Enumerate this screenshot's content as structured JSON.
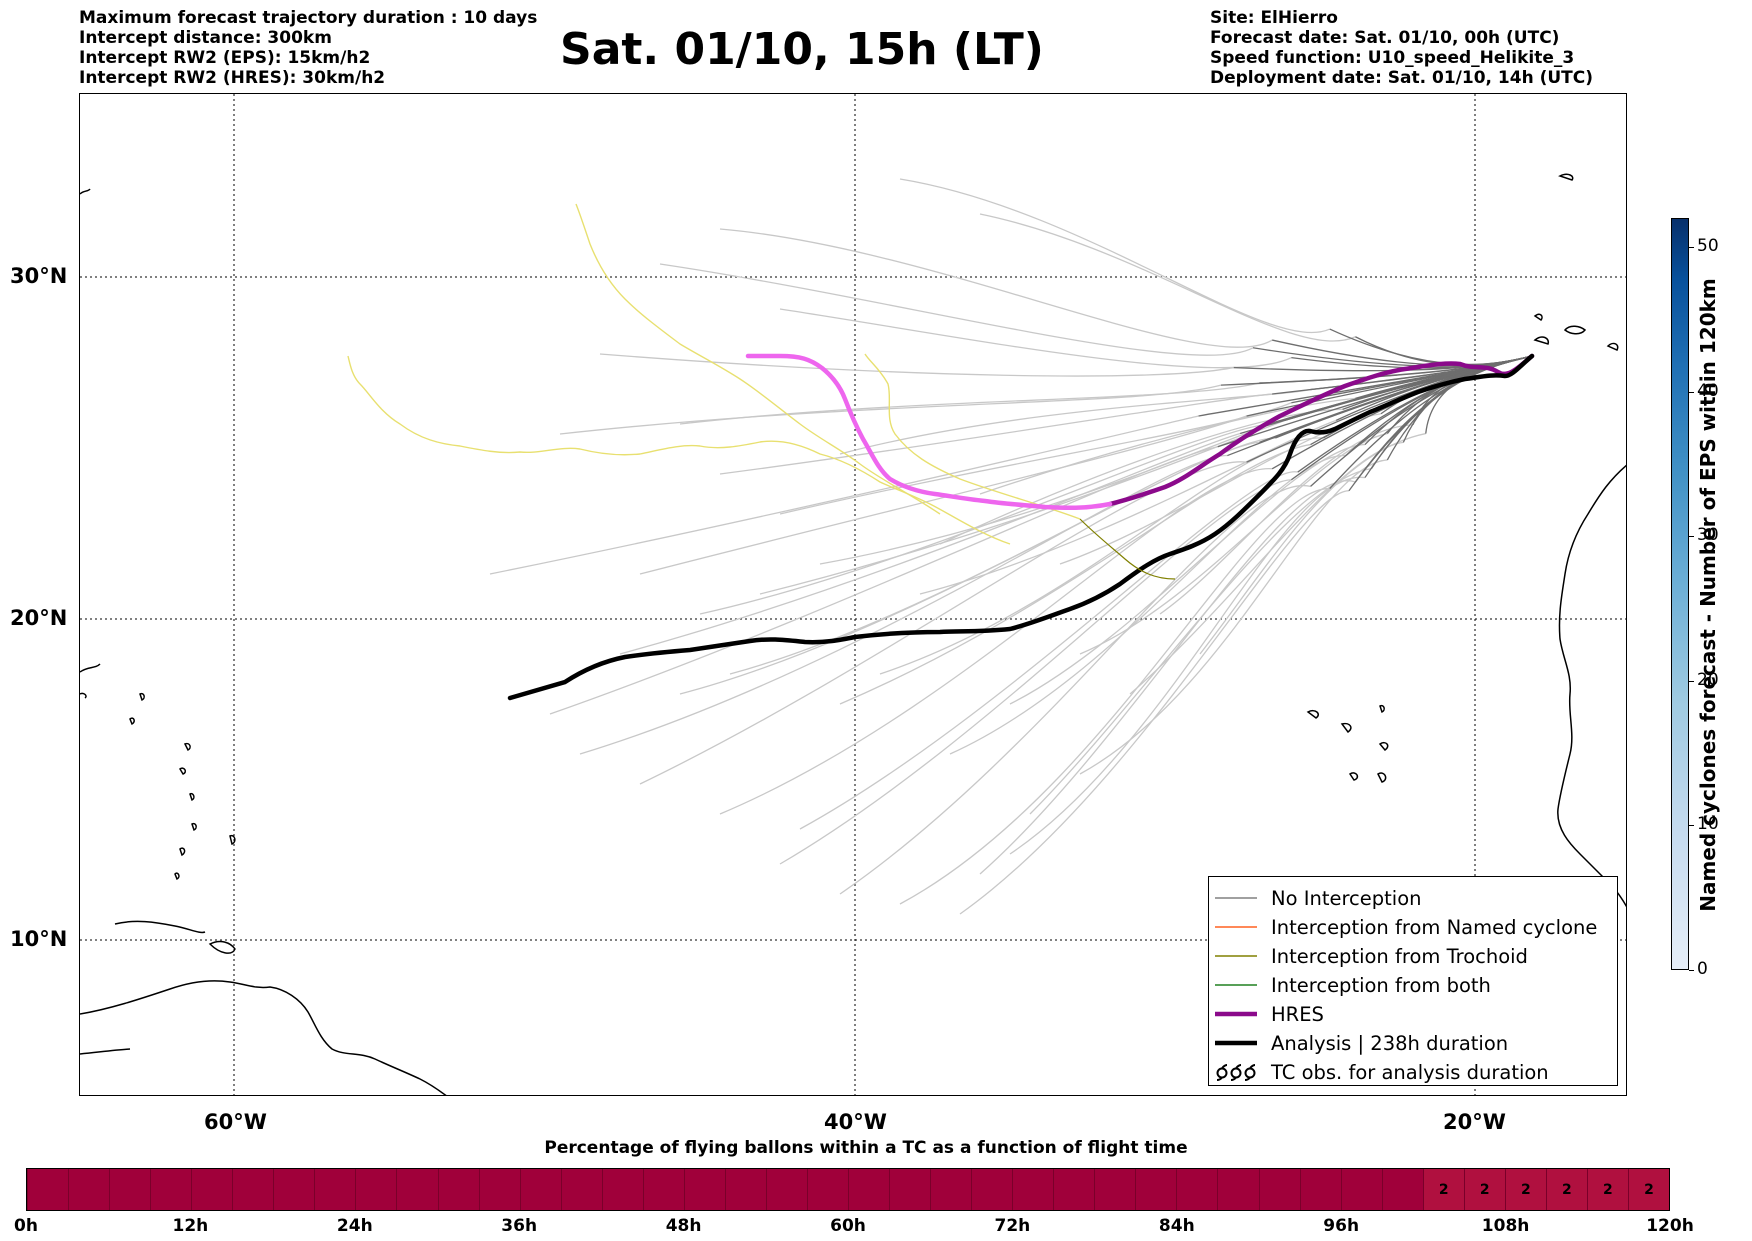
{
  "header_left": [
    "Maximum forecast trajectory duration : 10 days",
    "Intercept distance: 300km",
    "Intercept RW2 (EPS):  15km/h2",
    "Intercept RW2 (HRES): 30km/h2"
  ],
  "title": "Sat. 01/10, 15h (LT)",
  "header_right": [
    "Site: ElHierro",
    "Forecast date: Sat. 01/10, 00h (UTC)",
    "Speed function: U10_speed_Helikite_3",
    "Deployment date: Sat. 01/10, 14h (UTC)"
  ],
  "map": {
    "lat_labels": [
      "30°N",
      "20°N",
      "10°N"
    ],
    "lon_labels": [
      "60°W",
      "40°W",
      "20°W"
    ],
    "grid": "dotted"
  },
  "legend": {
    "items": [
      {
        "label": "No Interception",
        "color": "#808080",
        "kind": "line-thin"
      },
      {
        "label": "Interception from Named cyclone",
        "color": "#ff6020",
        "kind": "line-thin"
      },
      {
        "label": "Interception from Trochoid",
        "color": "#808000",
        "kind": "line-thin"
      },
      {
        "label": "Interception from both",
        "color": "#208020",
        "kind": "line-thin"
      },
      {
        "label": "HRES",
        "color": "#8b0a8b",
        "kind": "line-thick"
      },
      {
        "label": "Analysis | 238h duration",
        "color": "#000000",
        "kind": "line-thick"
      },
      {
        "label": "TC obs. for analysis duration",
        "color": "#000000",
        "kind": "tc-symbols"
      }
    ]
  },
  "colorbar": {
    "label": "Named cyclones forecast - Number of EPS within 120km",
    "ticks": [
      "0",
      "10",
      "20",
      "30",
      "40",
      "50"
    ],
    "range": [
      0,
      52
    ]
  },
  "time_bar": {
    "title": "Percentage of flying ballons within a TC as a function of flight time",
    "tick_labels": [
      "0h",
      "12h",
      "24h",
      "36h",
      "48h",
      "60h",
      "72h",
      "84h",
      "96h",
      "108h",
      "120h"
    ],
    "segment_count": 40,
    "segment_values": [
      "",
      "",
      "",
      "",
      "",
      "",
      "",
      "",
      "",
      "",
      "",
      "",
      "",
      "",
      "",
      "",
      "",
      "",
      "",
      "",
      "",
      "",
      "",
      "",
      "",
      "",
      "",
      "",
      "",
      "",
      "",
      "",
      "",
      "",
      "2",
      "2",
      "2",
      "2",
      "2",
      "2"
    ],
    "color": "#a0003a"
  }
}
